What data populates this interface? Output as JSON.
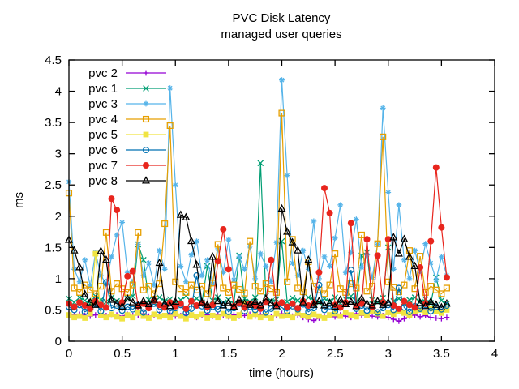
{
  "colors": {
    "background": "#ffffff",
    "axis": "#000000",
    "text": "#000000"
  },
  "chart_data": {
    "type": "line",
    "title": "PVC Disk Latency",
    "subtitle": "managed user queries",
    "xlabel": "time (hours)",
    "ylabel": "ms",
    "xlim": [
      0,
      4
    ],
    "ylim": [
      0,
      4.5
    ],
    "x_ticks": [
      0,
      0.5,
      1,
      1.5,
      2,
      2.5,
      3,
      3.5,
      4
    ],
    "y_ticks": [
      0,
      0.5,
      1,
      1.5,
      2,
      2.5,
      3,
      3.5,
      4,
      4.5
    ],
    "grid": false,
    "legend_position": "top-left",
    "x_start": 0,
    "x_step": 0.05,
    "series": [
      {
        "name": "pvc 2",
        "color": "#9400d3",
        "marker": "plus",
        "values": [
          0.44,
          0.42,
          0.43,
          0.41,
          0.4,
          0.42,
          0.44,
          0.41,
          0.43,
          0.42,
          0.4,
          0.43,
          0.41,
          0.42,
          0.44,
          0.4,
          0.42,
          0.43,
          0.41,
          0.42,
          0.4,
          0.41,
          0.43,
          0.42,
          0.38,
          0.41,
          0.42,
          0.4,
          0.43,
          0.41,
          0.39,
          0.42,
          0.4,
          0.41,
          0.43,
          0.4,
          0.42,
          0.41,
          0.39,
          0.42,
          0.44,
          0.41,
          0.4,
          0.42,
          0.38,
          0.35,
          0.33,
          0.37,
          0.4,
          0.41,
          0.39,
          0.42,
          0.4,
          0.38,
          0.44,
          0.41,
          0.42,
          0.4,
          0.39,
          0.41,
          0.38,
          0.35,
          0.32,
          0.36,
          0.4,
          0.42,
          0.39,
          0.41,
          0.38,
          0.37,
          0.36,
          0.38
        ]
      },
      {
        "name": "pvc 1",
        "color": "#009e73",
        "marker": "cross",
        "values": [
          0.68,
          0.62,
          0.7,
          0.65,
          0.6,
          0.72,
          0.66,
          0.63,
          0.7,
          0.64,
          0.61,
          0.68,
          0.72,
          1.55,
          1.3,
          0.66,
          0.62,
          0.7,
          0.64,
          0.67,
          0.61,
          0.66,
          0.72,
          0.63,
          0.68,
          0.62,
          1.2,
          0.65,
          0.7,
          0.62,
          0.66,
          0.6,
          1.37,
          0.68,
          0.63,
          0.7,
          2.85,
          0.72,
          0.64,
          0.67,
          1.6,
          0.63,
          0.69,
          0.65,
          0.61,
          0.7,
          0.66,
          0.62,
          0.68,
          0.64,
          0.7,
          0.61,
          0.67,
          0.72,
          0.64,
          1.37,
          1.42,
          0.66,
          0.62,
          0.69,
          1.5,
          0.64,
          0.68,
          0.62,
          0.66,
          0.7,
          0.63,
          0.67,
          0.61,
          1.02,
          0.65,
          0.6
        ]
      },
      {
        "name": "pvc 3",
        "color": "#56b4e9",
        "marker": "asterisk",
        "values": [
          2.55,
          1.15,
          0.95,
          1.3,
          0.88,
          1.42,
          1.05,
          0.92,
          1.35,
          1.7,
          1.9,
          1.1,
          0.95,
          1.55,
          1.05,
          1.25,
          0.9,
          1.45,
          1.15,
          4.05,
          2.5,
          1.2,
          0.95,
          1.38,
          1.6,
          1.05,
          1.3,
          0.92,
          1.48,
          1.1,
          1.62,
          0.98,
          1.35,
          1.15,
          1.52,
          1.0,
          1.4,
          1.2,
          0.95,
          1.58,
          4.18,
          2.65,
          1.25,
          1.05,
          1.45,
          1.15,
          1.92,
          1.0,
          1.35,
          1.2,
          1.65,
          2.18,
          1.1,
          1.42,
          1.95,
          1.18,
          1.38,
          1.02,
          1.55,
          3.73,
          2.38,
          1.15,
          2.18,
          1.3,
          1.0,
          1.45,
          1.12,
          1.56,
          1.25,
          0.98,
          1.35,
          1.05
        ]
      },
      {
        "name": "pvc 4",
        "color": "#e69f00",
        "marker": "square-open",
        "values": [
          2.37,
          0.85,
          0.78,
          0.9,
          0.82,
          0.76,
          0.88,
          1.74,
          0.8,
          0.92,
          0.84,
          0.78,
          0.9,
          1.74,
          0.82,
          0.88,
          0.76,
          0.92,
          1.88,
          3.45,
          0.95,
          0.84,
          0.78,
          0.9,
          0.82,
          0.88,
          0.76,
          0.93,
          1.55,
          0.85,
          0.78,
          0.9,
          0.83,
          0.77,
          1.6,
          0.88,
          0.8,
          0.92,
          0.84,
          0.78,
          3.65,
          0.95,
          1.63,
          0.85,
          0.79,
          1.27,
          0.88,
          0.82,
          0.76,
          0.9,
          1.4,
          0.84,
          0.78,
          0.92,
          0.85,
          1.7,
          0.8,
          0.88,
          1.56,
          3.27,
          0.95,
          0.86,
          0.79,
          0.9,
          1.45,
          0.84,
          1.36,
          0.78,
          0.88,
          0.82,
          0.76,
          0.85
        ]
      },
      {
        "name": "pvc 5",
        "color": "#f0e442",
        "marker": "square-filled",
        "values": [
          0.42,
          0.38,
          0.4,
          0.37,
          0.44,
          1.4,
          0.41,
          0.38,
          0.43,
          0.39,
          0.36,
          0.42,
          0.38,
          0.45,
          0.4,
          0.37,
          0.43,
          0.39,
          0.41,
          0.38,
          0.44,
          0.4,
          0.36,
          0.42,
          0.39,
          0.43,
          0.37,
          0.41,
          0.38,
          0.44,
          0.4,
          0.37,
          0.42,
          0.6,
          0.39,
          0.43,
          0.38,
          0.41,
          0.37,
          0.44,
          0.4,
          0.42,
          0.38,
          0.45,
          0.41,
          0.39,
          0.43,
          0.4,
          0.37,
          0.42,
          0.44,
          0.4,
          0.46,
          0.42,
          0.39,
          0.45,
          0.41,
          0.48,
          0.44,
          0.4,
          0.46,
          0.43,
          0.48,
          0.45,
          0.42,
          0.47,
          0.5,
          0.46,
          0.52,
          0.48,
          0.45,
          0.5
        ]
      },
      {
        "name": "pvc 6",
        "color": "#0072b2",
        "marker": "circle-open",
        "values": [
          0.55,
          0.5,
          0.58,
          0.47,
          0.52,
          0.6,
          0.48,
          0.94,
          0.53,
          0.57,
          0.49,
          0.55,
          0.51,
          0.58,
          0.46,
          0.54,
          0.6,
          0.5,
          0.56,
          0.48,
          0.53,
          0.58,
          0.45,
          0.52,
          1.05,
          0.56,
          0.49,
          0.55,
          0.51,
          0.58,
          0.47,
          0.53,
          0.6,
          0.48,
          0.55,
          0.5,
          0.57,
          0.46,
          0.52,
          0.58,
          0.54,
          0.48,
          0.56,
          0.51,
          0.59,
          0.47,
          0.53,
          0.9,
          0.5,
          0.56,
          0.48,
          0.54,
          0.6,
          1.14,
          0.52,
          0.57,
          0.49,
          0.55,
          0.46,
          0.53,
          0.58,
          0.5,
          0.85,
          0.54,
          0.47,
          0.56,
          0.52,
          0.58,
          0.48,
          0.55,
          0.51,
          0.57
        ]
      },
      {
        "name": "pvc 7",
        "color": "#e8251d",
        "marker": "circle-filled",
        "values": [
          0.6,
          0.55,
          0.62,
          0.57,
          0.52,
          0.64,
          0.58,
          0.54,
          2.28,
          2.1,
          0.62,
          1.04,
          1.12,
          0.56,
          0.6,
          0.53,
          0.65,
          0.58,
          0.54,
          0.62,
          0.56,
          0.6,
          0.52,
          0.64,
          0.57,
          0.61,
          0.55,
          0.58,
          1.28,
          1.79,
          1.15,
          0.56,
          0.62,
          0.54,
          0.6,
          0.57,
          0.52,
          0.63,
          1.3,
          0.58,
          0.62,
          0.55,
          0.6,
          0.53,
          0.64,
          0.57,
          0.61,
          1.1,
          2.45,
          2.05,
          0.58,
          0.54,
          0.62,
          1.89,
          0.56,
          0.6,
          1.63,
          0.55,
          1.37,
          0.62,
          1.63,
          0.57,
          0.52,
          0.64,
          0.58,
          0.54,
          1.18,
          0.6,
          1.6,
          2.78,
          1.82,
          1.02
        ]
      },
      {
        "name": "pvc 8",
        "color": "#000000",
        "marker": "triangle-open",
        "values": [
          1.62,
          1.45,
          1.18,
          0.75,
          0.62,
          0.58,
          1.44,
          1.3,
          0.66,
          0.6,
          0.55,
          0.68,
          0.62,
          0.57,
          0.64,
          0.59,
          0.66,
          1.25,
          0.6,
          0.56,
          0.63,
          2.02,
          1.98,
          1.6,
          1.22,
          0.62,
          0.58,
          1.35,
          0.64,
          0.57,
          0.61,
          0.55,
          0.66,
          0.6,
          0.58,
          0.63,
          0.57,
          0.68,
          0.61,
          0.56,
          2.12,
          1.75,
          1.58,
          1.45,
          0.62,
          1.3,
          0.58,
          0.64,
          0.57,
          0.61,
          0.55,
          0.66,
          0.59,
          0.63,
          0.56,
          0.68,
          0.6,
          0.57,
          0.64,
          0.58,
          0.62,
          1.66,
          1.4,
          1.63,
          1.35,
          1.2,
          0.61,
          0.56,
          0.63,
          0.58,
          0.54,
          0.6
        ]
      }
    ]
  }
}
